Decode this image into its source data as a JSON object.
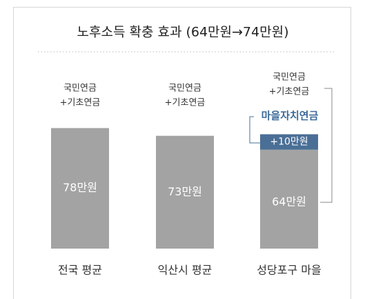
{
  "chart_data": {
    "type": "stacked_bar",
    "title": "노후소득 확충 효과 (64만원→74만원)",
    "categories": [
      "전국 평균",
      "익산시 평균",
      "성당포구 마을"
    ],
    "series": [
      {
        "label_lines": [
          "국민연금",
          "+기초연금"
        ],
        "color": "#a3a3a3",
        "values": [
          78,
          73,
          64
        ],
        "value_labels": [
          "78만원",
          "73만원",
          "64만원"
        ]
      },
      {
        "name": "마을자치연금",
        "color": "#4a6f96",
        "values": [
          null,
          null,
          10
        ],
        "value_labels": [
          null,
          null,
          "+10만원"
        ]
      }
    ],
    "ylim": [
      0,
      80
    ]
  }
}
